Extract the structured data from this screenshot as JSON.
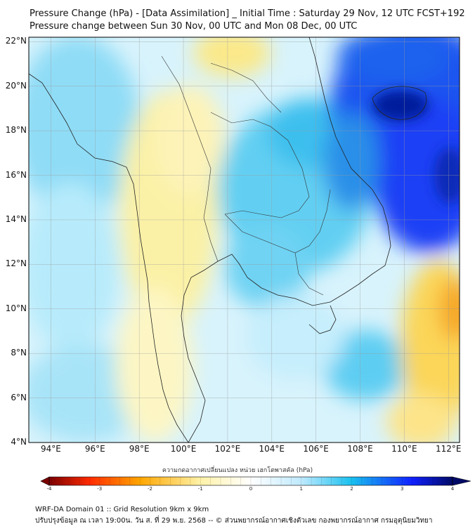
{
  "title": {
    "line1": "Pressure Change (hPa) - [Data Assimilation] _ Initial Time : Saturday 29 Nov, 12 UTC FCST+192",
    "line2": "Pressure change between Sun 30 Nov, 00 UTC and Mon 08 Dec, 00 UTC"
  },
  "axes": {
    "lat_labels": [
      "22°N",
      "20°N",
      "18°N",
      "16°N",
      "14°N",
      "12°N",
      "10°N",
      "8°N",
      "6°N",
      "4°N"
    ],
    "lon_labels": [
      "94°E",
      "96°E",
      "98°E",
      "100°E",
      "102°E",
      "104°E",
      "106°E",
      "108°E",
      "110°E",
      "112°E"
    ],
    "lat_range": [
      4,
      22.2
    ],
    "lon_range": [
      93,
      112.5
    ]
  },
  "colorbar": {
    "label": "ความกดอากาศเปลี่ยนแปลง หน่วย เฮกโตพาสคัล (hPa)",
    "ticks": [
      "-4",
      "-3",
      "-2",
      "-1",
      "0",
      "1",
      "2",
      "3",
      "4"
    ],
    "range": [
      -4,
      4
    ],
    "colors": {
      "neg_strong": "#7a0000",
      "neg_mid": "#ff2a00",
      "neg_orange": "#ffa600",
      "neg_light": "#fff2a8",
      "zero": "#ffffff",
      "pos_light": "#bfeaff",
      "pos_mid": "#19c0ef",
      "pos_strong": "#1020ff",
      "pos_dark": "#000a66"
    }
  },
  "footer": {
    "line1": "WRF-DA Domain 01 :: Grid Resolution 9km x 9km",
    "line2": "ปรับปรุงข้อมูล ณ เวลา 19:00น. วัน ส. ที่ 29 พ.ย. 2568 -- © ส่วนพยากรณ์อากาศเชิงตัวเลข กองพยากรณ์อากาศ กรมอุตุนิยมวิทยา"
  }
}
